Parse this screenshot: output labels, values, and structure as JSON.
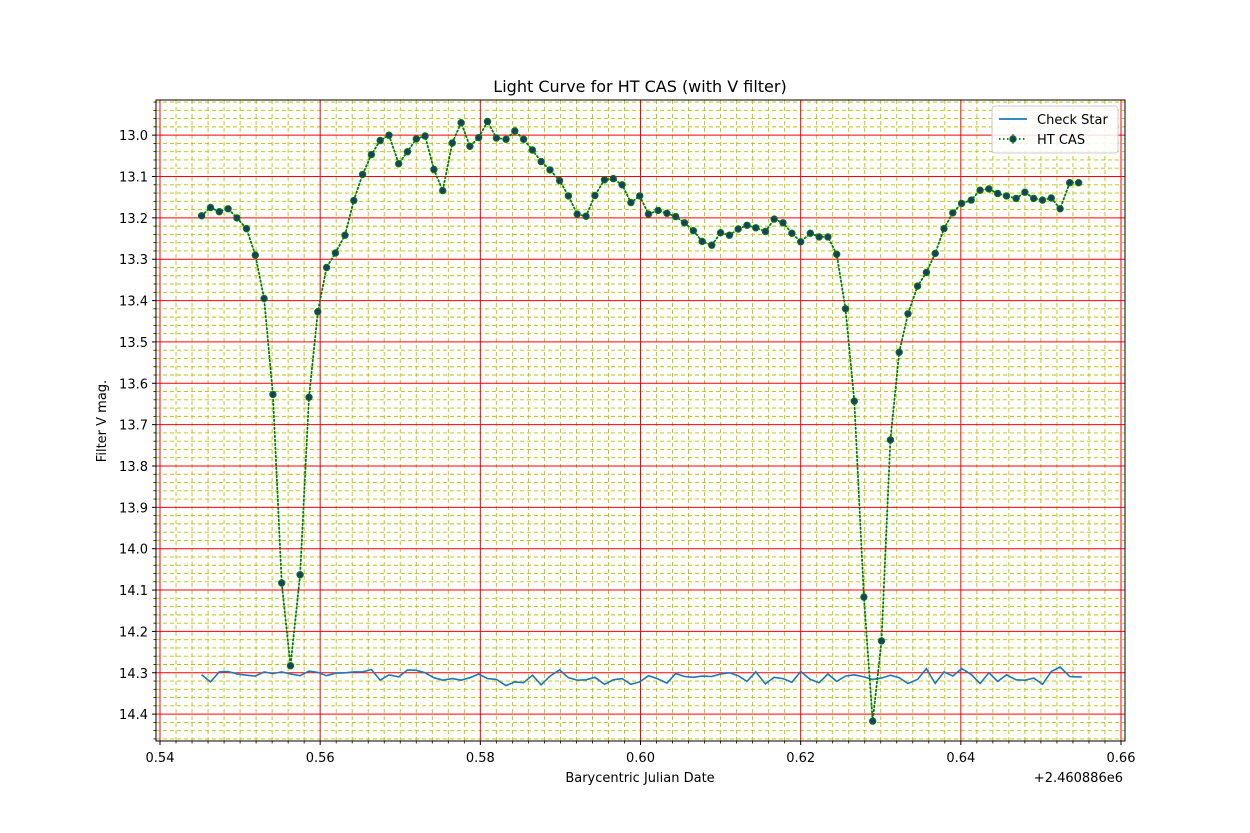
{
  "chart_data": {
    "type": "line",
    "title": "Light Curve for HT CAS (with V filter)",
    "xlabel": "Barycentric Julian Date",
    "ylabel": "Filter V mag.",
    "x_offset_label": "+2.460886e6",
    "xlim": [
      0.5395,
      0.6605
    ],
    "ylim": [
      14.465,
      12.915
    ],
    "y_inverted": true,
    "x_ticks": [
      0.54,
      0.56,
      0.58,
      0.6,
      0.62,
      0.64,
      0.66
    ],
    "x_tick_labels": [
      "0.54",
      "0.56",
      "0.58",
      "0.60",
      "0.62",
      "0.64",
      "0.66"
    ],
    "y_ticks": [
      13.0,
      13.1,
      13.2,
      13.3,
      13.4,
      13.5,
      13.6,
      13.7,
      13.8,
      13.9,
      14.0,
      14.1,
      14.2,
      14.3,
      14.4
    ],
    "y_tick_labels": [
      "13.0",
      "13.1",
      "13.2",
      "13.3",
      "13.4",
      "13.5",
      "13.6",
      "13.7",
      "13.8",
      "13.9",
      "14.0",
      "14.1",
      "14.2",
      "14.3",
      "14.4"
    ],
    "grid": true,
    "legend": "top-right",
    "colors": {
      "major_grid": "#ff0000",
      "minor_grid": "#bfbf00",
      "check_star": "#1f77b4",
      "ht_cas_line": "#008000",
      "ht_cas_marker": "#1f3a6e"
    },
    "series": [
      {
        "name": "Check Star",
        "style": "solid",
        "x": [
          0.5452,
          0.5463,
          0.5474,
          0.5485,
          0.5496,
          0.5508,
          0.5519,
          0.553,
          0.5541,
          0.5552,
          0.5563,
          0.5575,
          0.5586,
          0.5597,
          0.5608,
          0.5619,
          0.5631,
          0.5642,
          0.5653,
          0.5664,
          0.5675,
          0.5686,
          0.5698,
          0.5709,
          0.572,
          0.5731,
          0.5742,
          0.5753,
          0.5765,
          0.5776,
          0.5787,
          0.5798,
          0.5809,
          0.582,
          0.5832,
          0.5843,
          0.5854,
          0.5865,
          0.5876,
          0.5887,
          0.5899,
          0.591,
          0.5921,
          0.5932,
          0.5943,
          0.5955,
          0.5966,
          0.5977,
          0.5988,
          0.5999,
          0.601,
          0.6022,
          0.6033,
          0.6044,
          0.6055,
          0.6066,
          0.6077,
          0.6089,
          0.61,
          0.6111,
          0.6122,
          0.6133,
          0.6144,
          0.6156,
          0.6167,
          0.6178,
          0.6189,
          0.62,
          0.6212,
          0.6223,
          0.6234,
          0.6245,
          0.6256,
          0.6267,
          0.6279,
          0.629,
          0.6301,
          0.6312,
          0.6323,
          0.6334,
          0.6346,
          0.6357,
          0.6368,
          0.6379,
          0.639,
          0.6401,
          0.6413,
          0.6424,
          0.6435,
          0.6446,
          0.6457,
          0.6469,
          0.648,
          0.6491,
          0.6502,
          0.6513,
          0.6524,
          0.6536,
          0.6547,
          0.6551
        ],
        "y": [
          14.305,
          14.322,
          14.298,
          14.297,
          14.303,
          14.306,
          14.308,
          14.298,
          14.302,
          14.298,
          14.303,
          14.307,
          14.296,
          14.299,
          14.307,
          14.301,
          14.3,
          14.298,
          14.298,
          14.292,
          14.318,
          14.305,
          14.31,
          14.293,
          14.294,
          14.3,
          14.312,
          14.318,
          14.314,
          14.318,
          14.312,
          14.303,
          14.314,
          14.316,
          14.331,
          14.322,
          14.324,
          14.306,
          14.329,
          14.308,
          14.293,
          14.312,
          14.318,
          14.317,
          14.311,
          14.328,
          14.317,
          14.314,
          14.328,
          14.322,
          14.307,
          14.315,
          14.325,
          14.302,
          14.309,
          14.311,
          14.308,
          14.309,
          14.303,
          14.3,
          14.307,
          14.321,
          14.298,
          14.327,
          14.311,
          14.314,
          14.323,
          14.297,
          14.316,
          14.324,
          14.303,
          14.321,
          14.308,
          14.305,
          14.31,
          14.316,
          14.313,
          14.306,
          14.312,
          14.326,
          14.316,
          14.29,
          14.326,
          14.298,
          14.308,
          14.29,
          14.304,
          14.326,
          14.3,
          14.321,
          14.305,
          14.317,
          14.318,
          14.313,
          14.328,
          14.297,
          14.286,
          14.309,
          14.31,
          14.31
        ]
      },
      {
        "name": "HT CAS",
        "style": "dotted-with-markers",
        "x": [
          0.5452,
          0.5463,
          0.5474,
          0.5485,
          0.5496,
          0.5508,
          0.5519,
          0.553,
          0.5541,
          0.5552,
          0.5563,
          0.5575,
          0.5586,
          0.5597,
          0.5608,
          0.5619,
          0.5631,
          0.5642,
          0.5653,
          0.5664,
          0.5675,
          0.5686,
          0.5698,
          0.5709,
          0.572,
          0.5731,
          0.5742,
          0.5753,
          0.5765,
          0.5776,
          0.5787,
          0.5798,
          0.5809,
          0.582,
          0.5832,
          0.5843,
          0.5854,
          0.5865,
          0.5876,
          0.5887,
          0.5899,
          0.591,
          0.5921,
          0.5932,
          0.5943,
          0.5955,
          0.5966,
          0.5977,
          0.5988,
          0.5999,
          0.601,
          0.6022,
          0.6033,
          0.6044,
          0.6055,
          0.6066,
          0.6077,
          0.6089,
          0.61,
          0.6111,
          0.6122,
          0.6133,
          0.6144,
          0.6156,
          0.6167,
          0.6178,
          0.6189,
          0.62,
          0.6212,
          0.6223,
          0.6234,
          0.6245,
          0.6256,
          0.6267,
          0.6279,
          0.629,
          0.6301,
          0.6312,
          0.6323,
          0.6334,
          0.6346,
          0.6357,
          0.6368,
          0.6379,
          0.639,
          0.6401,
          0.6413,
          0.6424,
          0.6435,
          0.6446,
          0.6457,
          0.6469,
          0.648,
          0.6491,
          0.6502,
          0.6513,
          0.6524,
          0.6536,
          0.6547
        ],
        "y": [
          13.195,
          13.175,
          13.185,
          13.178,
          13.2,
          13.226,
          13.29,
          13.395,
          13.627,
          14.083,
          14.283,
          14.063,
          13.634,
          13.427,
          13.32,
          13.285,
          13.242,
          13.158,
          13.095,
          13.047,
          13.013,
          13.0,
          13.069,
          13.04,
          13.009,
          13.002,
          13.083,
          13.134,
          13.019,
          12.97,
          13.027,
          13.006,
          12.967,
          13.007,
          13.01,
          12.99,
          13.01,
          13.036,
          13.064,
          13.084,
          13.11,
          13.147,
          13.191,
          13.196,
          13.146,
          13.108,
          13.105,
          13.12,
          13.163,
          13.147,
          13.191,
          13.182,
          13.189,
          13.197,
          13.212,
          13.231,
          13.257,
          13.266,
          13.236,
          13.242,
          13.227,
          13.218,
          13.224,
          13.233,
          13.203,
          13.212,
          13.237,
          13.258,
          13.237,
          13.246,
          13.246,
          13.288,
          13.42,
          13.643,
          14.117,
          14.417,
          14.223,
          13.737,
          13.525,
          13.432,
          13.365,
          13.332,
          13.286,
          13.226,
          13.188,
          13.165,
          13.157,
          13.133,
          13.13,
          13.141,
          13.147,
          13.153,
          13.138,
          13.153,
          13.157,
          13.152,
          13.178,
          13.115,
          13.115
        ]
      }
    ]
  }
}
